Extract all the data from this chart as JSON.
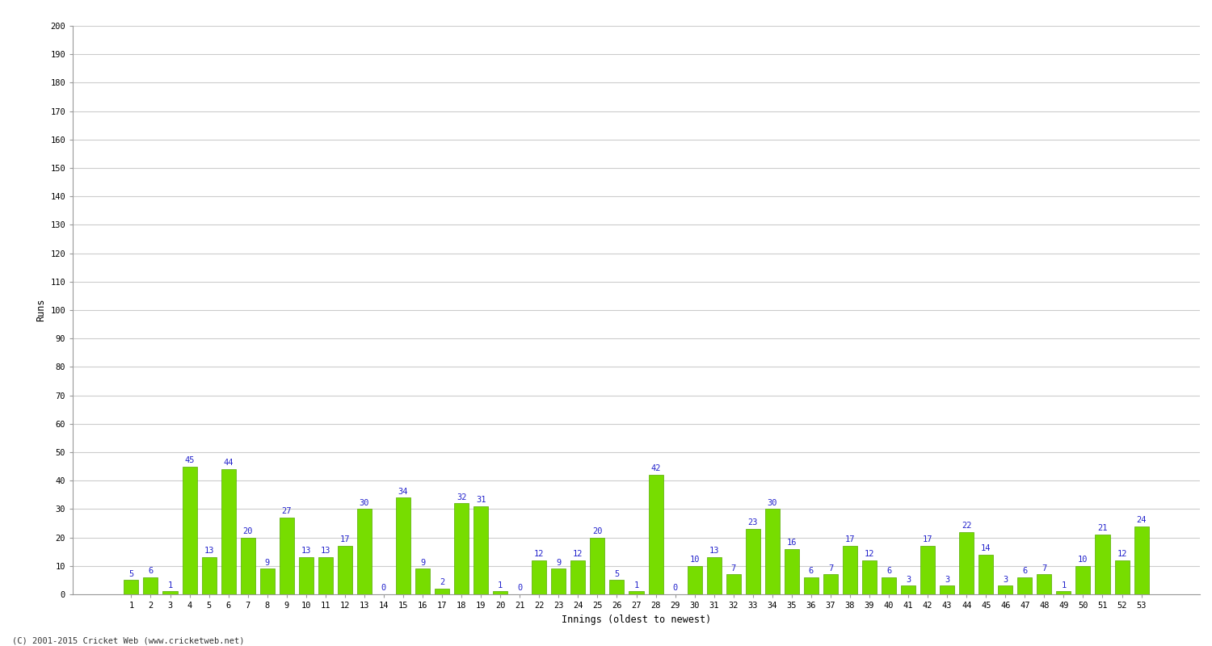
{
  "innings": [
    1,
    2,
    3,
    4,
    5,
    6,
    7,
    8,
    9,
    10,
    11,
    12,
    13,
    14,
    15,
    16,
    17,
    18,
    19,
    20,
    21,
    22,
    23,
    24,
    25,
    26,
    27,
    28,
    29,
    30,
    31,
    32,
    33,
    34,
    35,
    36,
    37,
    38,
    39,
    40,
    41,
    42,
    43,
    44,
    45,
    46,
    47,
    48,
    49,
    50,
    51,
    52,
    53
  ],
  "runs": [
    5,
    6,
    1,
    45,
    13,
    44,
    20,
    9,
    27,
    13,
    13,
    17,
    30,
    0,
    34,
    9,
    2,
    32,
    31,
    1,
    0,
    12,
    9,
    12,
    20,
    5,
    1,
    42,
    0,
    10,
    13,
    7,
    23,
    30,
    16,
    6,
    7,
    17,
    12,
    6,
    3,
    17,
    3,
    22,
    14,
    3,
    6,
    7,
    1,
    10,
    21,
    12,
    24
  ],
  "bar_color": "#77dd00",
  "bar_edge_color": "#55aa00",
  "label_color": "#2222cc",
  "background_color": "#ffffff",
  "grid_color": "#cccccc",
  "ylabel": "Runs",
  "xlabel": "Innings (oldest to newest)",
  "ylim": [
    0,
    200
  ],
  "yticks": [
    0,
    10,
    20,
    30,
    40,
    50,
    60,
    70,
    80,
    90,
    100,
    110,
    120,
    130,
    140,
    150,
    160,
    170,
    180,
    190,
    200
  ],
  "footer": "(C) 2001-2015 Cricket Web (www.cricketweb.net)",
  "label_fontsize": 7.5,
  "axis_fontsize": 8.5,
  "tick_fontsize": 7.5
}
